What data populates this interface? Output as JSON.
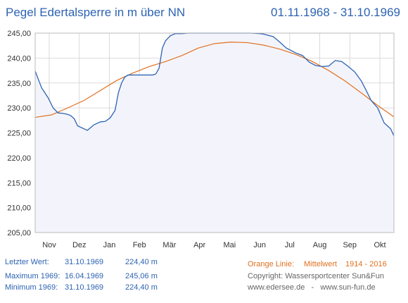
{
  "header": {
    "title": "Pegel Edertalsperre in m über NN",
    "date_range": "01.11.1968 - 31.10.1969"
  },
  "footer": {
    "last": {
      "label": "Letzter Wert:",
      "date": "31.10.1969",
      "value": "224,40 m"
    },
    "max": {
      "label": "Maximum 1969:",
      "date": "16.04.1969",
      "value": "245,06 m"
    },
    "min": {
      "label": "Minimum  1969:",
      "date": "31.10.1969",
      "value": "224,40 m"
    },
    "orange_label": "Orange Linie:",
    "orange_desc": "Mittelwert",
    "orange_years": "1914 - 2016",
    "copyright": "Copyright: Wassersportcenter Sun&Fun",
    "links": "www.edersee.de   -   www.sun-fun.de"
  },
  "colors": {
    "series": "#2d63b3",
    "mean": "#e07020",
    "fill": "#f3f4fb",
    "grid": "#d0d0d0"
  },
  "chart_data": {
    "type": "line",
    "ylim": [
      205,
      245
    ],
    "yticks": [
      "205,00",
      "210,00",
      "215,00",
      "220,00",
      "225,00",
      "230,00",
      "235,00",
      "240,00",
      "245,00"
    ],
    "xlim": [
      0,
      11
    ],
    "xticks": [
      "Nov",
      "Dez",
      "Jan",
      "Feb",
      "Mär",
      "Apr",
      "Mai",
      "Jun",
      "Jul",
      "Aug",
      "Sep",
      "Okt"
    ],
    "grid": true,
    "series": [
      {
        "x": [
          0,
          0.08,
          0.2,
          0.3,
          0.4,
          0.55,
          0.7,
          0.85,
          1,
          1.1,
          1.2,
          1.3,
          1.5,
          1.6,
          1.8,
          2,
          2.15,
          2.3,
          2.45,
          2.55,
          2.65,
          2.75,
          2.85,
          3,
          3.2,
          3.4,
          3.6,
          3.7,
          3.8,
          3.9,
          4,
          4.15,
          4.3,
          4.5,
          4.7,
          5,
          5.3,
          5.6,
          6,
          6.3,
          6.6,
          6.9,
          7,
          7.3,
          7.5,
          7.7,
          8,
          8.2,
          8.4,
          8.6,
          8.8,
          9,
          9.2,
          9.4,
          9.6,
          9.8,
          10,
          10.15,
          10.3,
          10.5,
          10.7,
          10.9,
          11
        ],
        "values": [
          237.4,
          236,
          234,
          233,
          232,
          230,
          229,
          228.9,
          228.7,
          228.4,
          227.8,
          226.4,
          225.8,
          225.5,
          226.6,
          227.2,
          227.3,
          228,
          229.5,
          233,
          235,
          236.2,
          236.6,
          236.6,
          236.6,
          236.6,
          236.6,
          236.8,
          238,
          242,
          243.5,
          244.5,
          244.9,
          244.9,
          245,
          245,
          245,
          245,
          245,
          245,
          245,
          244.9,
          244.8,
          244.3,
          243.2,
          242,
          241,
          240.5,
          239.2,
          238.5,
          238.3,
          238.4,
          239.5,
          239.3,
          238.3,
          237.2,
          235.4,
          233.5,
          231.5,
          230,
          227,
          225.8,
          224.4
        ]
      },
      {
        "x": [
          0,
          0.5,
          1,
          1.5,
          2,
          2.5,
          3,
          3.5,
          4,
          4.5,
          5,
          5.5,
          6,
          6.5,
          7,
          7.5,
          8,
          8.5,
          9,
          9.5,
          10,
          10.5,
          11
        ],
        "values": [
          228.1,
          228.6,
          230,
          231.5,
          233.5,
          235.5,
          237,
          238.3,
          239.3,
          240.5,
          242,
          242.9,
          243.2,
          243.1,
          242.6,
          241.8,
          240.7,
          239.3,
          237.5,
          235.4,
          233,
          230.5,
          228.2
        ]
      }
    ]
  }
}
